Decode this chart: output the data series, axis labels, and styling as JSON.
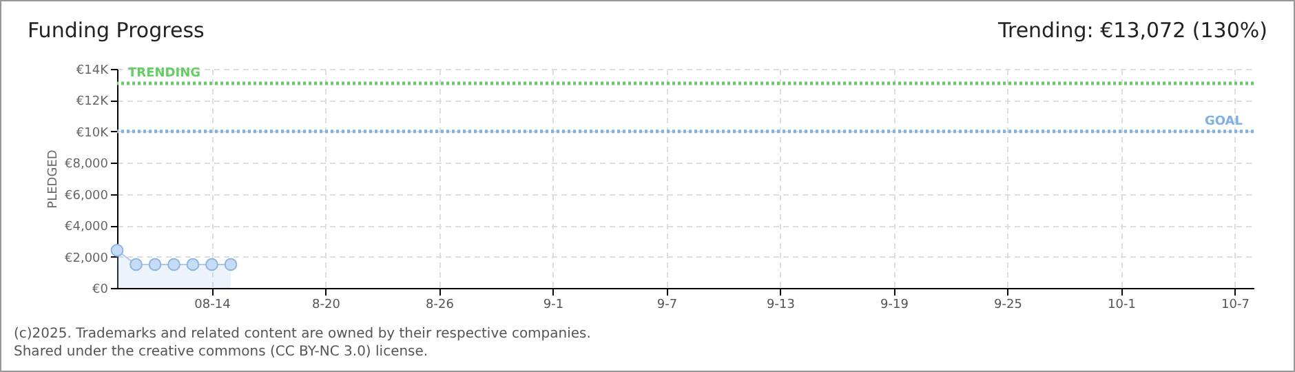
{
  "chart_data": {
    "type": "area",
    "title": "Funding Progress",
    "subtitle": "Trending: €13,072 (130%)",
    "ylabel": "PLEDGED",
    "x": [
      "--08-09",
      "--08-10",
      "--08-11",
      "--08-12",
      "--08-13",
      "--08-14",
      "--08-15"
    ],
    "series": [
      {
        "color": "#a9c9ee",
        "values": [
          2400,
          1500,
          1500,
          1500,
          1500,
          1500,
          1500
        ]
      }
    ],
    "marker": "circle",
    "grid": true,
    "xlim": [
      "--08-09",
      "--10-08"
    ],
    "xticks": [
      {
        "value": "--08-14",
        "label": "08-14"
      },
      {
        "value": "--08-20",
        "label": "8-20"
      },
      {
        "value": "--08-26",
        "label": "8-26"
      },
      {
        "value": "--09-01",
        "label": "9-1"
      },
      {
        "value": "--09-07",
        "label": "9-7"
      },
      {
        "value": "--09-13",
        "label": "9-13"
      },
      {
        "value": "--09-19",
        "label": "9-19"
      },
      {
        "value": "--09-25",
        "label": "9-25"
      },
      {
        "value": "--10-01",
        "label": "10-1"
      },
      {
        "value": "--10-07",
        "label": "10-7"
      }
    ],
    "ylim": [
      0,
      14000
    ],
    "yticks": [
      {
        "value": 0,
        "label": "€0"
      },
      {
        "value": 2000,
        "label": "€2,000"
      },
      {
        "value": 4000,
        "label": "€4,000"
      },
      {
        "value": 6000,
        "label": "€6,000"
      },
      {
        "value": 8000,
        "label": "€8,000"
      },
      {
        "value": 10000,
        "label": "€10K"
      },
      {
        "value": 12000,
        "label": "€12K"
      },
      {
        "value": 14000,
        "label": "€14K"
      }
    ],
    "ref_lines": [
      {
        "axis": "y",
        "value": 13072,
        "label": "TRENDING",
        "color": "#66cc66",
        "line_style": "dotted"
      },
      {
        "axis": "y",
        "value": 10000,
        "label": "GOAL",
        "color": "#7fb0e6",
        "line_style": "dotted"
      }
    ],
    "annotations": [
      "(c)2025. Trademarks and related content are owned by their respective companies.",
      "Shared under the creative commons (CC BY-NC 3.0) license."
    ]
  }
}
